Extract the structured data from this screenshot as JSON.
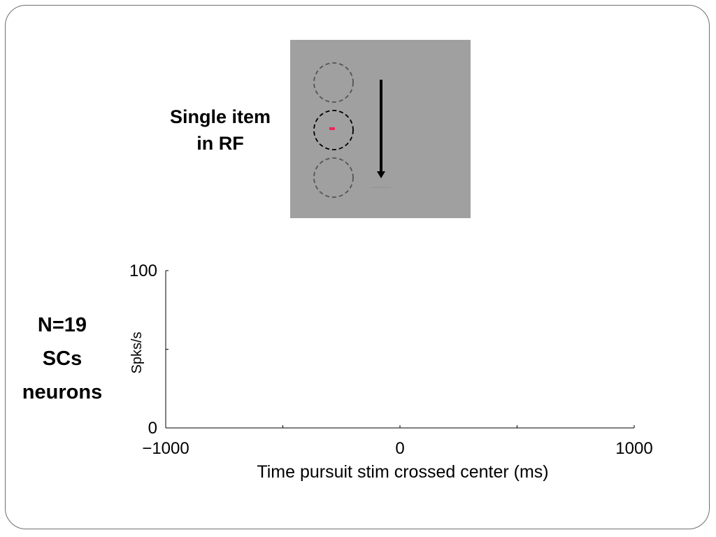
{
  "stimulus": {
    "label_line1": "Single item",
    "label_line2": "in RF",
    "colors": {
      "background": "#a0a0a0",
      "target_dot": "#e8285a",
      "rf_circle": "#000000",
      "distractor_circle": "#555555",
      "arrow": "#000000"
    }
  },
  "population": {
    "line1": "N=19",
    "line2": "SCs",
    "line3": "neurons"
  },
  "chart_data": {
    "type": "line",
    "xlabel": "Time pursuit stim crossed center (ms)",
    "ylabel": "Spks/s",
    "xlim": [
      -1000,
      1000
    ],
    "ylim": [
      0,
      100
    ],
    "x_ticks": [
      -1000,
      -500,
      0,
      500,
      1000
    ],
    "x_tick_labels": [
      "−1000",
      "",
      "0",
      "",
      "1000"
    ],
    "y_ticks": [
      0,
      50,
      100
    ],
    "y_tick_labels": [
      "0",
      "",
      "100"
    ],
    "series": [],
    "grid": false
  }
}
